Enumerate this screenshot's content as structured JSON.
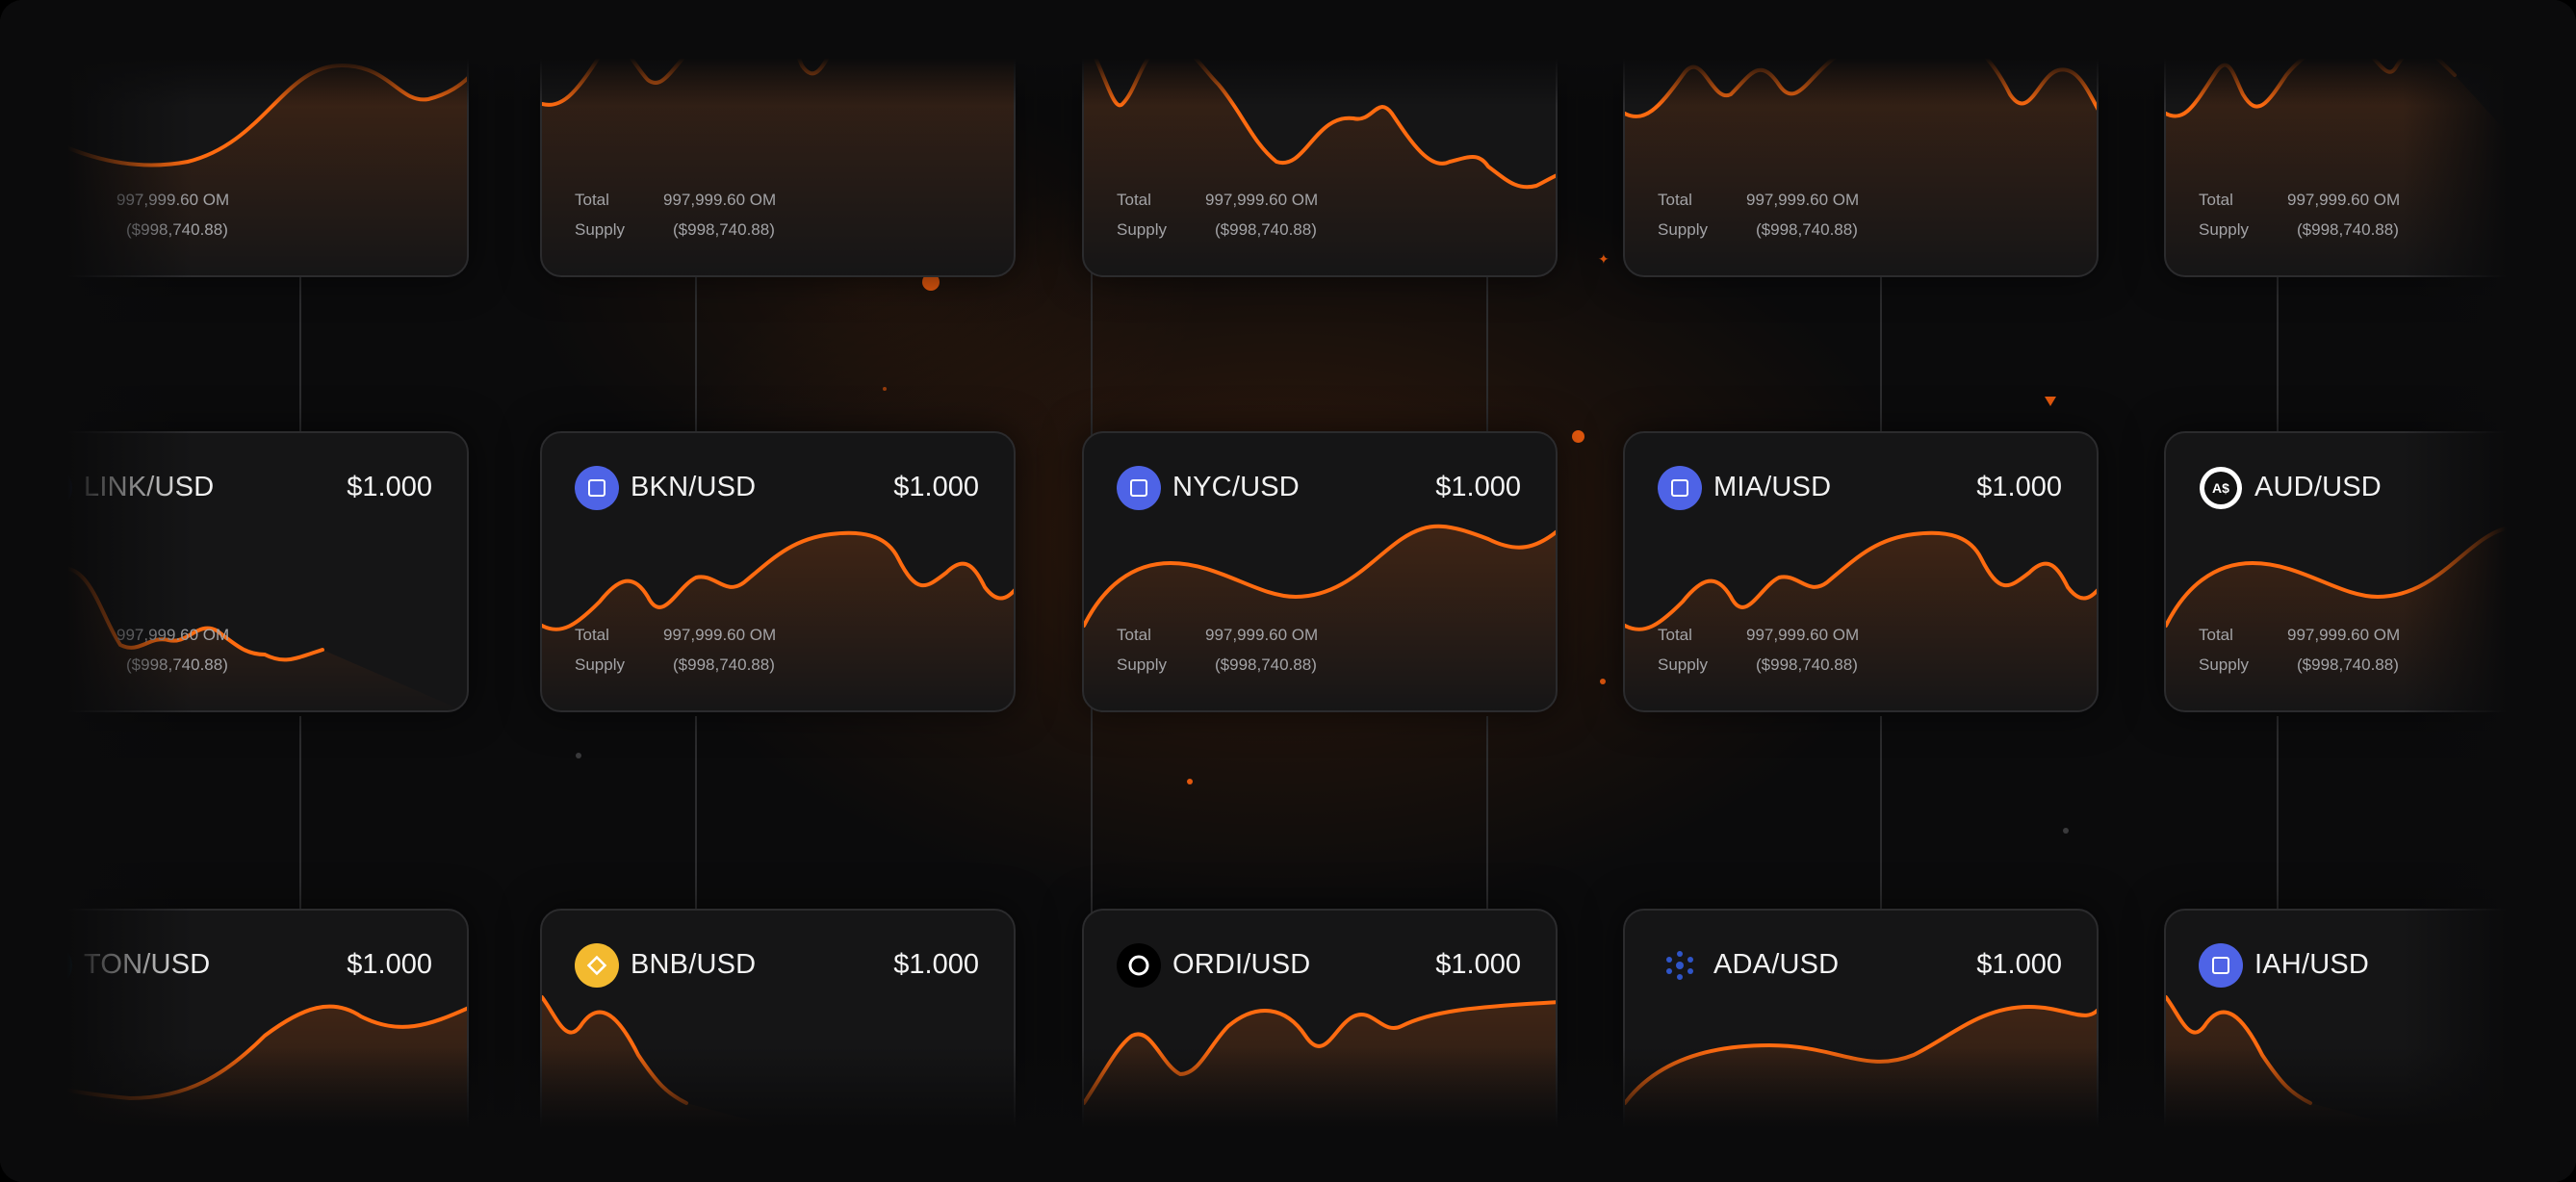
{
  "accent_color": "#ff6b10",
  "cards": [
    {
      "pair": "",
      "price": "",
      "icon": "",
      "icon_color": "",
      "total_label": "",
      "total_value": "997,999.60 OM",
      "supply_label": "",
      "supply_value": "($998,740.88)"
    },
    {
      "pair": "",
      "price": "",
      "icon": "",
      "icon_color": "",
      "total_label": "Total",
      "total_value": "997,999.60 OM",
      "supply_label": "Supply",
      "supply_value": "($998,740.88)"
    },
    {
      "pair": "",
      "price": "",
      "icon": "",
      "icon_color": "",
      "total_label": "Total",
      "total_value": "997,999.60 OM",
      "supply_label": "Supply",
      "supply_value": "($998,740.88)"
    },
    {
      "pair": "",
      "price": "",
      "icon": "",
      "icon_color": "",
      "total_label": "Total",
      "total_value": "997,999.60 OM",
      "supply_label": "Supply",
      "supply_value": "($998,740.88)"
    },
    {
      "pair": "",
      "price": "",
      "icon": "",
      "icon_color": "",
      "total_label": "Total",
      "total_value": "997,999.60 OM",
      "supply_label": "Supply",
      "supply_value": "($998,740.88)"
    },
    {
      "pair": "LINK/USD",
      "price": "$1.000",
      "icon": "link-icon",
      "icon_color": "#2a5ada",
      "total_label": "",
      "total_value": "997,999.60 OM",
      "supply_label": "",
      "supply_value": "($998,740.88)"
    },
    {
      "pair": "BKN/USD",
      "price": "$1.000",
      "icon": "bkn-icon",
      "icon_color": "#4e63e6",
      "total_label": "Total",
      "total_value": "997,999.60 OM",
      "supply_label": "Supply",
      "supply_value": "($998,740.88)"
    },
    {
      "pair": "NYC/USD",
      "price": "$1.000",
      "icon": "nyc-icon",
      "icon_color": "#4e63e6",
      "total_label": "Total",
      "total_value": "997,999.60 OM",
      "supply_label": "Supply",
      "supply_value": "($998,740.88)"
    },
    {
      "pair": "MIA/USD",
      "price": "$1.000",
      "icon": "mia-icon",
      "icon_color": "#4e63e6",
      "total_label": "Total",
      "total_value": "997,999.60 OM",
      "supply_label": "Supply",
      "supply_value": "($998,740.88)"
    },
    {
      "pair": "AUD/USD",
      "price": "",
      "icon": "aud-icon",
      "icon_color": "#ffffff",
      "total_label": "Total",
      "total_value": "997,999.60 OM",
      "supply_label": "Supply",
      "supply_value": "($998,740.88)"
    },
    {
      "pair": "TON/USD",
      "price": "$1.000",
      "icon": "ton-icon",
      "icon_color": "#0098ea",
      "total_label": "",
      "total_value": "",
      "supply_label": "",
      "supply_value": ""
    },
    {
      "pair": "BNB/USD",
      "price": "$1.000",
      "icon": "bnb-icon",
      "icon_color": "#f3ba2f",
      "total_label": "",
      "total_value": "",
      "supply_label": "",
      "supply_value": ""
    },
    {
      "pair": "ORDI/USD",
      "price": "$1.000",
      "icon": "ordi-icon",
      "icon_color": "#000000",
      "total_label": "",
      "total_value": "",
      "supply_label": "",
      "supply_value": ""
    },
    {
      "pair": "ADA/USD",
      "price": "$1.000",
      "icon": "ada-icon",
      "icon_color": "#2f55c8",
      "total_label": "",
      "total_value": "",
      "supply_label": "",
      "supply_value": ""
    },
    {
      "pair": "IAH/USD",
      "price": "",
      "icon": "iah-icon",
      "icon_color": "#4e63e6",
      "total_label": "",
      "total_value": "",
      "supply_label": "",
      "supply_value": ""
    }
  ]
}
